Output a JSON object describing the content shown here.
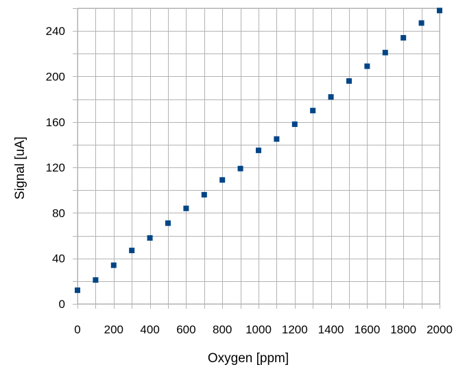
{
  "chart_data": {
    "type": "scatter",
    "title": "",
    "xlabel": "Oxygen [ppm]",
    "ylabel": "Signal [uA]",
    "xlim": [
      0,
      2000
    ],
    "ylim": [
      0,
      260
    ],
    "x_ticks": [
      0,
      200,
      400,
      600,
      800,
      1000,
      1200,
      1400,
      1600,
      1800,
      2000
    ],
    "y_ticks": [
      0,
      40,
      80,
      120,
      160,
      200,
      240
    ],
    "x_grid_step": 100,
    "grid": true,
    "legend": "none",
    "series": [
      {
        "color": "#004586",
        "marker": "square",
        "points": [
          {
            "x": 0,
            "y": 12
          },
          {
            "x": 100,
            "y": 21
          },
          {
            "x": 200,
            "y": 34
          },
          {
            "x": 300,
            "y": 47
          },
          {
            "x": 400,
            "y": 58
          },
          {
            "x": 500,
            "y": 71
          },
          {
            "x": 600,
            "y": 84
          },
          {
            "x": 700,
            "y": 96
          },
          {
            "x": 800,
            "y": 109
          },
          {
            "x": 900,
            "y": 119
          },
          {
            "x": 1000,
            "y": 135
          },
          {
            "x": 1100,
            "y": 145
          },
          {
            "x": 1200,
            "y": 158
          },
          {
            "x": 1300,
            "y": 170
          },
          {
            "x": 1400,
            "y": 182
          },
          {
            "x": 1500,
            "y": 196
          },
          {
            "x": 1600,
            "y": 209
          },
          {
            "x": 1700,
            "y": 221
          },
          {
            "x": 1800,
            "y": 234
          },
          {
            "x": 1900,
            "y": 247
          },
          {
            "x": 2000,
            "y": 258
          }
        ]
      }
    ]
  }
}
